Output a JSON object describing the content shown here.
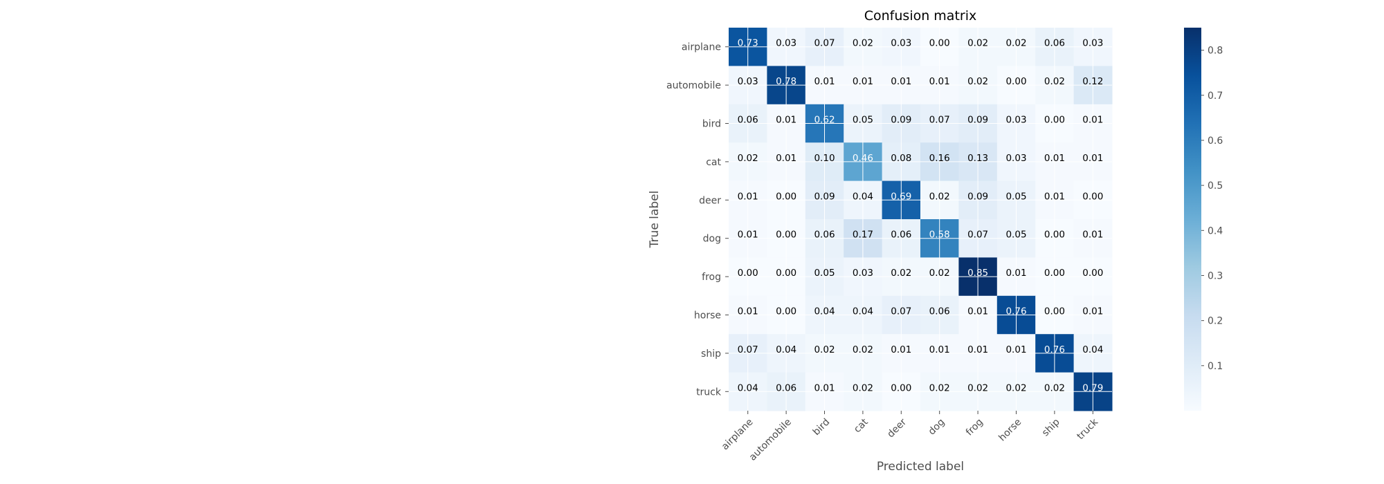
{
  "chart_data": {
    "type": "heatmap",
    "title": "Confusion matrix",
    "xlabel": "Predicted label",
    "ylabel": "True label",
    "x_categories": [
      "airplane",
      "automobile",
      "bird",
      "cat",
      "deer",
      "dog",
      "frog",
      "horse",
      "ship",
      "truck"
    ],
    "y_categories": [
      "airplane",
      "automobile",
      "bird",
      "cat",
      "deer",
      "dog",
      "frog",
      "horse",
      "ship",
      "truck"
    ],
    "values": [
      [
        0.73,
        0.03,
        0.07,
        0.02,
        0.03,
        0.0,
        0.02,
        0.02,
        0.06,
        0.03
      ],
      [
        0.03,
        0.78,
        0.01,
        0.01,
        0.01,
        0.01,
        0.02,
        0.0,
        0.02,
        0.12
      ],
      [
        0.06,
        0.01,
        0.62,
        0.05,
        0.09,
        0.07,
        0.09,
        0.03,
        0.0,
        0.01
      ],
      [
        0.02,
        0.01,
        0.1,
        0.46,
        0.08,
        0.16,
        0.13,
        0.03,
        0.01,
        0.01
      ],
      [
        0.01,
        0.0,
        0.09,
        0.04,
        0.69,
        0.02,
        0.09,
        0.05,
        0.01,
        0.0
      ],
      [
        0.01,
        0.0,
        0.06,
        0.17,
        0.06,
        0.58,
        0.07,
        0.05,
        0.0,
        0.01
      ],
      [
        0.0,
        0.0,
        0.05,
        0.03,
        0.02,
        0.02,
        0.85,
        0.01,
        0.0,
        0.0
      ],
      [
        0.01,
        0.0,
        0.04,
        0.04,
        0.07,
        0.06,
        0.01,
        0.76,
        0.0,
        0.01
      ],
      [
        0.07,
        0.04,
        0.02,
        0.02,
        0.01,
        0.01,
        0.01,
        0.01,
        0.76,
        0.04
      ],
      [
        0.04,
        0.06,
        0.01,
        0.02,
        0.0,
        0.02,
        0.02,
        0.02,
        0.02,
        0.79
      ]
    ],
    "colormap": "Blues",
    "colorbar": {
      "range": [
        0.0,
        0.85
      ],
      "ticks": [
        "0.1",
        "0.2",
        "0.3",
        "0.4",
        "0.5",
        "0.6",
        "0.7",
        "0.8"
      ]
    },
    "grid": true
  }
}
